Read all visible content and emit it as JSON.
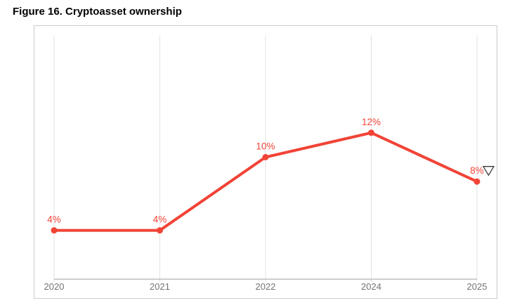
{
  "figure": {
    "title": "Figure 16. Cryptoasset ownership"
  },
  "chart_data": {
    "type": "line",
    "title": "Figure 16. Cryptoasset ownership",
    "categories": [
      "2020",
      "2021",
      "2022",
      "2024",
      "2025"
    ],
    "values": [
      4,
      4,
      10,
      12,
      8
    ],
    "point_labels": [
      "4%",
      "4%",
      "10%",
      "12%",
      "8%"
    ],
    "xlabel": "",
    "ylabel": "",
    "ylim": [
      0,
      20
    ],
    "grid": "vertical-only",
    "legend": "none",
    "last_point_marker": "down-triangle-outline",
    "colors": {
      "line": "#F14336",
      "point": "#F14336",
      "data_label": "#F14336",
      "gridline": "#E3E3E3",
      "axis_line": "#9E9E9E",
      "axis_label": "#737373",
      "marker_outline": "#3C3C3C",
      "panel_border": "#CBCBCB"
    }
  }
}
